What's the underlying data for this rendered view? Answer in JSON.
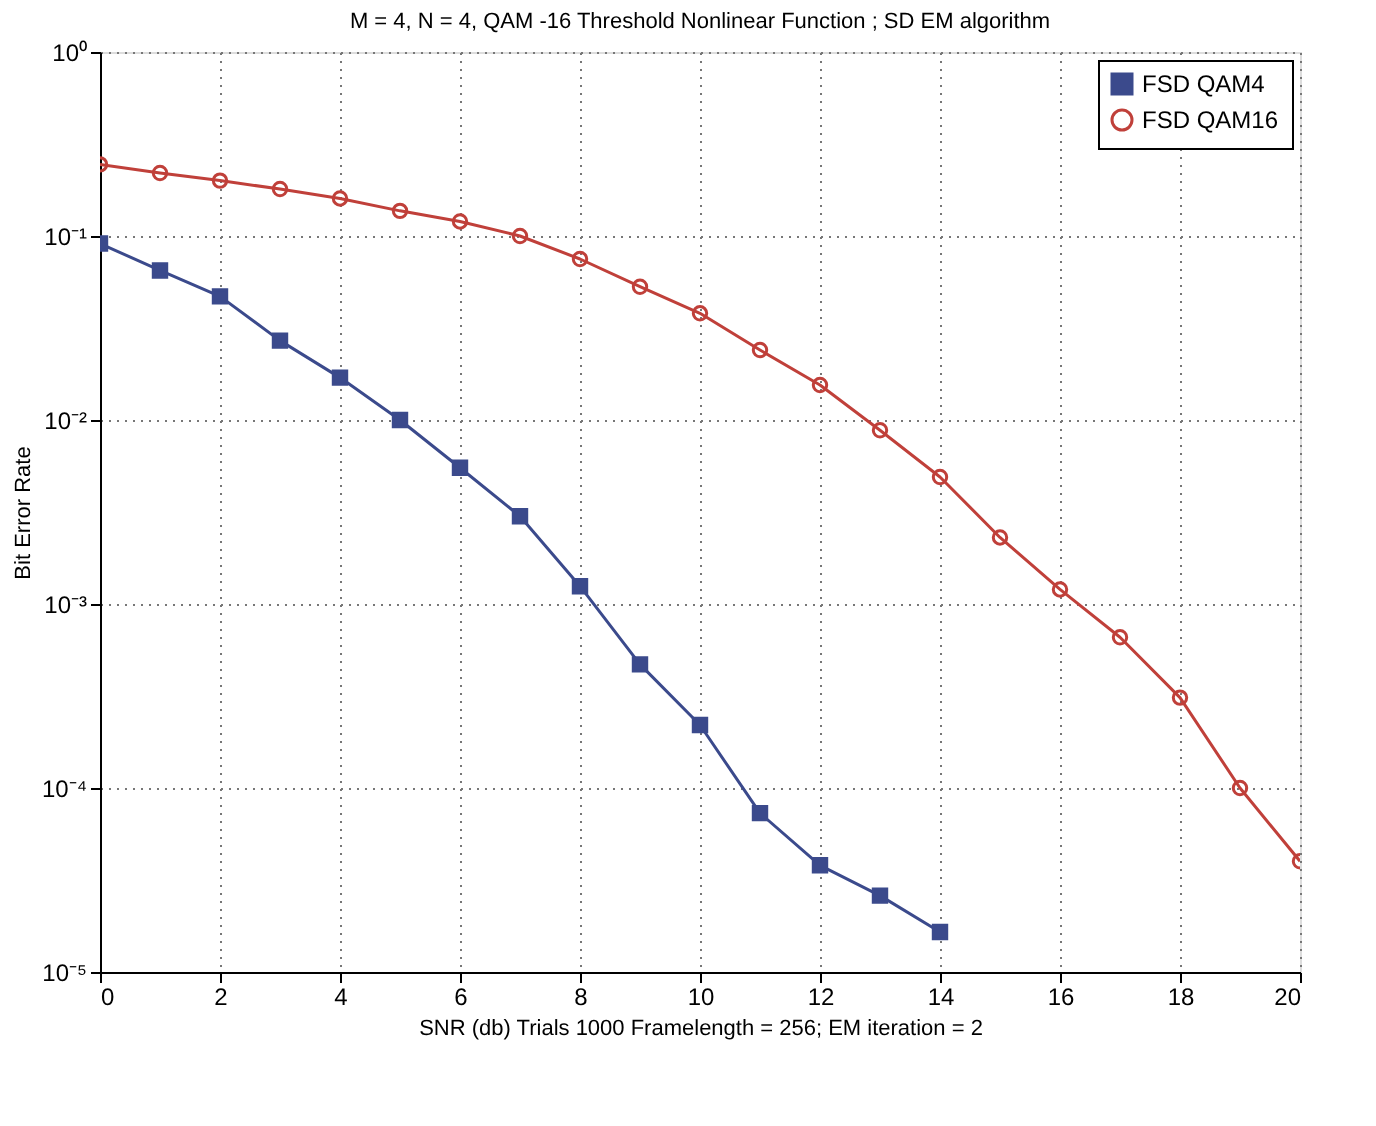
{
  "chart_data": {
    "type": "line",
    "title": "M = 4, N = 4,  QAM -16  Threshold Nonlinear Function  ;   SD EM algorithm",
    "xlabel": "SNR (db)     Trials  1000     Framelength = 256;    EM iteration = 2",
    "ylabel": "Bit Error Rate",
    "log": "y",
    "grid": true,
    "legend": "top right",
    "line_style": "solid",
    "xlim": [
      0,
      20
    ],
    "xticks": [
      0,
      2,
      4,
      6,
      8,
      10,
      12,
      14,
      16,
      18,
      20
    ],
    "ylim": [
      1e-05,
      1
    ],
    "yticks": [
      {
        "value": 1e-05,
        "label": "10⁻⁵"
      },
      {
        "value": 0.0001,
        "label": "10⁻⁴"
      },
      {
        "value": 0.001,
        "label": "10⁻³"
      },
      {
        "value": 0.01,
        "label": "10⁻²"
      },
      {
        "value": 0.1,
        "label": "10⁻¹"
      },
      {
        "value": 1,
        "label": "10⁰"
      }
    ],
    "series": [
      {
        "name": "FSD QAM4",
        "color": "#3b4a8c",
        "marker": "square",
        "x": [
          0,
          1,
          2,
          3,
          4,
          5,
          6,
          7,
          8,
          9,
          10,
          11,
          12,
          13,
          14
        ],
        "values": [
          0.091,
          0.065,
          0.047,
          0.027,
          0.017,
          0.01,
          0.0055,
          0.003,
          0.00125,
          0.00047,
          0.00022,
          7.3e-05,
          3.8e-05,
          2.6e-05,
          1.65e-05
        ]
      },
      {
        "name": "FSD QAM16",
        "color": "#c0403a",
        "marker": "circle",
        "x": [
          0,
          1,
          2,
          3,
          4,
          5,
          6,
          7,
          8,
          9,
          10,
          11,
          12,
          13,
          14,
          15,
          16,
          17,
          18,
          19,
          20
        ],
        "values": [
          0.245,
          0.22,
          0.2,
          0.18,
          0.16,
          0.137,
          0.12,
          0.1,
          0.075,
          0.053,
          0.038,
          0.024,
          0.0155,
          0.0088,
          0.0049,
          0.0023,
          0.0012,
          0.00066,
          0.00031,
          0.0001,
          4e-05
        ]
      }
    ]
  }
}
